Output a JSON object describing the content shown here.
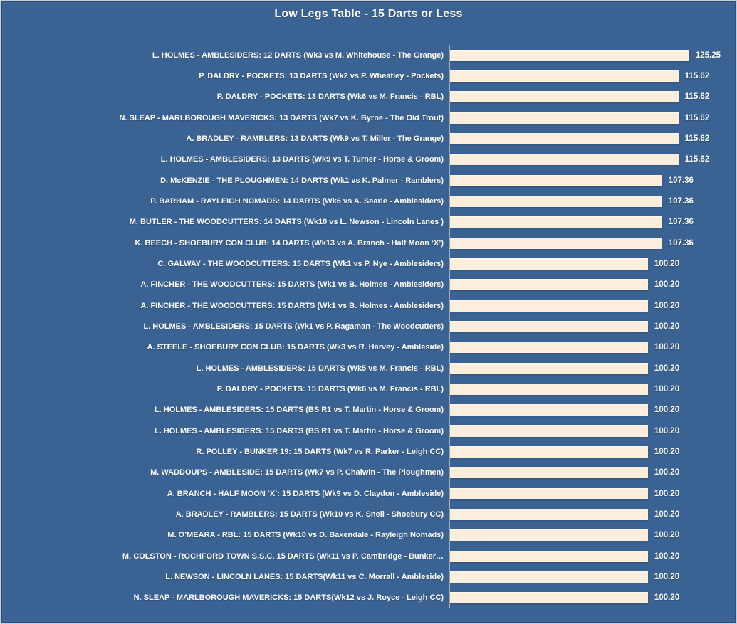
{
  "chart_data": {
    "type": "bar",
    "orientation": "horizontal",
    "title": "Low Legs Table - 15 Darts or Less",
    "xlabel": "",
    "ylabel": "",
    "xlim": [
      0,
      137
    ],
    "grid": false,
    "legend": false,
    "bar_color": "#fbeedd",
    "background_color": "#3a6292",
    "axis_line_color": "#a3aebc",
    "text_color": "#ffffff",
    "categories": [
      "L. HOLMES - AMBLESIDERS: 12 DARTS (Wk3 vs M. Whitehouse - The Grange)",
      "P. DALDRY - POCKETS: 13 DARTS (Wk2 vs P. Wheatley - Pockets)",
      "P. DALDRY - POCKETS: 13 DARTS (Wk6 vs M, Francis - RBL)",
      "N. SLEAP - MARLBOROUGH MAVERICKS: 13 DARTS (Wk7 vs K. Byrne - The Old Trout)",
      "A. BRADLEY - RAMBLERS: 13 DARTS (Wk9 vs T. Miller - The Grange)",
      "L. HOLMES - AMBLESIDERS: 13 DARTS (Wk9 vs T. Turner - Horse & Groom)",
      "D. McKENZIE - THE PLOUGHMEN: 14 DARTS (Wk1 vs K. Palmer - Ramblers)",
      "P. BARHAM - RAYLEIGH NOMADS: 14 DARTS (Wk6 vs A. Searle - Amblesiders)",
      "M. BUTLER - THE WOODCUTTERS: 14 DARTS (Wk10 vs L. Newson - Lincoln Lanes )",
      "K. BEECH - SHOEBURY CON CLUB: 14 DARTS (Wk13 vs A. Branch - Half Moon ‘X’)",
      "C. GALWAY - THE WOODCUTTERS: 15 DARTS (Wk1 vs P. Nye - Amblesiders)",
      "A. FINCHER - THE WOODCUTTERS: 15 DARTS (Wk1 vs B. Holmes - Amblesiders)",
      "A. FINCHER - THE WOODCUTTERS: 15 DARTS (Wk1 vs B. Holmes - Amblesiders)",
      "L. HOLMES - AMBLESIDERS: 15 DARTS (Wk1 vs P. Ragaman - The Woodcutters)",
      "A. STEELE - SHOEBURY CON CLUB: 15 DARTS (Wk3 vs R. Harvey - Ambleside)",
      "L. HOLMES - AMBLESIDERS: 15 DARTS (Wk5 vs M. Francis - RBL)",
      "P. DALDRY - POCKETS: 15 DARTS (Wk6 vs M, Francis - RBL)",
      "L. HOLMES - AMBLESIDERS: 15 DARTS (BS R1 vs T. Martin - Horse & Groom)",
      "L. HOLMES - AMBLESIDERS: 15 DARTS (BS R1 vs T. Martin - Horse & Groom)",
      "R. POLLEY - BUNKER 19: 15 DARTS (Wk7 vs R. Parker - Leigh CC)",
      "M. WADDOUPS - AMBLESIDE: 15 DARTS (Wk7 vs P. Chalwin - The Ploughmen)",
      "A. BRANCH - HALF MOON ‘X’: 15 DARTS (Wk9 vs D. Claydon - Ambleside)",
      "A. BRADLEY - RAMBLERS: 15 DARTS (Wk10 vs K. Snell - Shoebury CC)",
      "M. O’MEARA - RBL: 15 DARTS (Wk10 vs D. Baxendale - Rayleigh Nomads)",
      "M. COLSTON - ROCHFORD TOWN S.S.C. 15 DARTS (Wk11 vs P. Cambridge - Bunker…",
      "L. NEWSON - LINCOLN LANES: 15 DARTS(Wk11 vs C. Morrall - Ambleside)",
      "N. SLEAP - MARLBOROUGH MAVERICKS: 15 DARTS(Wk12 vs J. Royce - Leigh CC)"
    ],
    "values": [
      125.25,
      115.62,
      115.62,
      115.62,
      115.62,
      115.62,
      107.36,
      107.36,
      107.36,
      107.36,
      100.2,
      100.2,
      100.2,
      100.2,
      100.2,
      100.2,
      100.2,
      100.2,
      100.2,
      100.2,
      100.2,
      100.2,
      100.2,
      100.2,
      100.2,
      100.2,
      100.2
    ],
    "value_labels": [
      "125.25",
      "115.62",
      "115.62",
      "115.62",
      "115.62",
      "115.62",
      "107.36",
      "107.36",
      "107.36",
      "107.36",
      "100.20",
      "100.20",
      "100.20",
      "100.20",
      "100.20",
      "100.20",
      "100.20",
      "100.20",
      "100.20",
      "100.20",
      "100.20",
      "100.20",
      "100.20",
      "100.20",
      "100.20",
      "100.20",
      "100.20"
    ]
  }
}
